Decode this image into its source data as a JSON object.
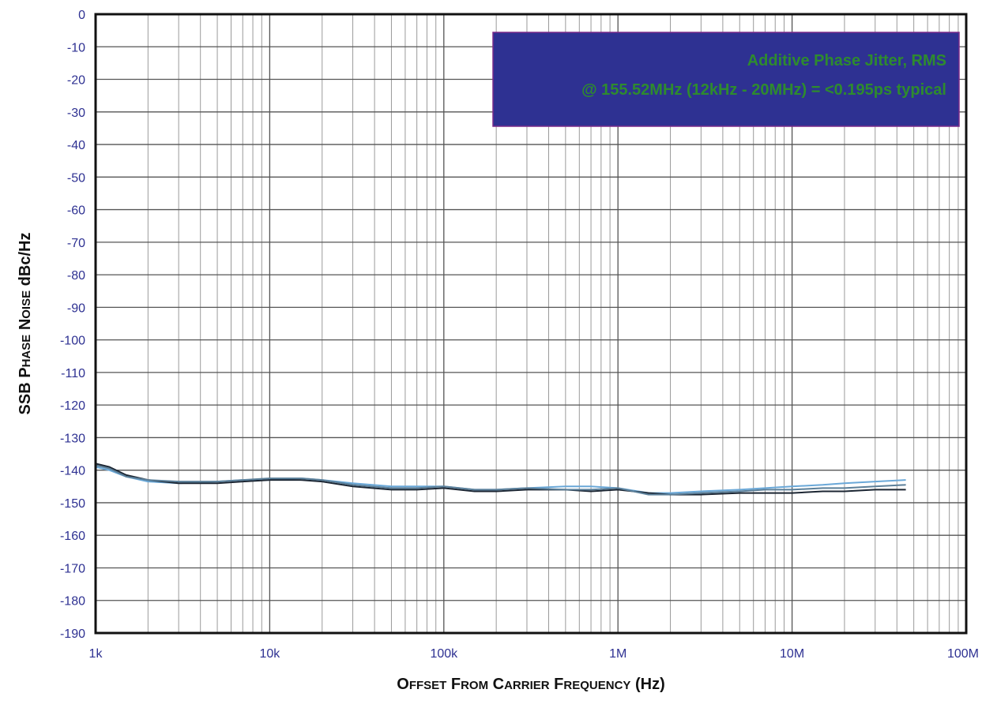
{
  "chart_data": {
    "type": "line",
    "xscale": "log",
    "xlim": [
      1000,
      100000000
    ],
    "ylim": [
      -190,
      0
    ],
    "grid": true,
    "x_ticks": [
      {
        "value": 1000,
        "label": "1k"
      },
      {
        "value": 10000,
        "label": "10k"
      },
      {
        "value": 100000,
        "label": "100k"
      },
      {
        "value": 1000000,
        "label": "1M"
      },
      {
        "value": 10000000,
        "label": "10M"
      },
      {
        "value": 100000000,
        "label": "100M"
      }
    ],
    "y_ticks": [
      0,
      -10,
      -20,
      -30,
      -40,
      -50,
      -60,
      -70,
      -80,
      -90,
      -100,
      -110,
      -120,
      -130,
      -140,
      -150,
      -160,
      -170,
      -180,
      -190
    ],
    "ylabel": {
      "parts": [
        {
          "text": "SSB P",
          "sc": false
        },
        {
          "text": "HASE",
          "sc": true
        },
        {
          "text": " N",
          "sc": false
        },
        {
          "text": "OISE",
          "sc": true
        },
        {
          "text": " dBc/Hz",
          "sc": false
        }
      ]
    },
    "xlabel": {
      "parts": [
        {
          "text": "O",
          "sc": false
        },
        {
          "text": "FFSET",
          "sc": true
        },
        {
          "text": " F",
          "sc": false
        },
        {
          "text": "ROM",
          "sc": true
        },
        {
          "text": " C",
          "sc": false
        },
        {
          "text": "ARRIER",
          "sc": true
        },
        {
          "text": " F",
          "sc": false
        },
        {
          "text": "REQUENCY",
          "sc": true
        },
        {
          "text": " (Hz)",
          "sc": false
        }
      ]
    },
    "annotation": {
      "lines": [
        "Additive Phase Jitter, RMS",
        "@ 155.52MHz (12kHz - 20MHz) = <0.195ps typical"
      ],
      "bg_color": "#2e3192",
      "text_color": "#2e8b2e",
      "position": "top-right"
    },
    "series": [
      {
        "color": "#6aa8d8",
        "x": [
          1000,
          1200,
          1500,
          2000,
          3000,
          5000,
          7000,
          10000,
          15000,
          20000,
          30000,
          50000,
          70000,
          100000,
          150000,
          200000,
          300000,
          500000,
          700000,
          1000000,
          1500000,
          2000000,
          3000000,
          5000000,
          7000000,
          10000000,
          15000000,
          20000000,
          30000000,
          45000000
        ],
        "y": [
          -139,
          -140,
          -142,
          -143.5,
          -144,
          -143.5,
          -143,
          -143,
          -142.5,
          -143,
          -144,
          -145,
          -145,
          -145,
          -146,
          -146,
          -145.5,
          -145,
          -145,
          -145.5,
          -147,
          -147,
          -146.5,
          -146,
          -145.5,
          -145,
          -144.5,
          -144,
          -143.5,
          -143
        ]
      },
      {
        "color": "#1c2633",
        "x": [
          1000,
          1200,
          1500,
          2000,
          3000,
          5000,
          7000,
          10000,
          15000,
          20000,
          30000,
          50000,
          70000,
          100000,
          150000,
          200000,
          300000,
          500000,
          700000,
          1000000,
          1500000,
          2000000,
          3000000,
          5000000,
          7000000,
          10000000,
          15000000,
          20000000,
          30000000,
          45000000
        ],
        "y": [
          -138,
          -139,
          -141.5,
          -143,
          -144,
          -144,
          -143.5,
          -143,
          -143,
          -143.5,
          -145,
          -146,
          -146,
          -145.5,
          -146.5,
          -146.5,
          -146,
          -146,
          -146.5,
          -146,
          -147,
          -147.5,
          -147.5,
          -147,
          -147,
          -147,
          -146.5,
          -146.5,
          -146,
          -146
        ]
      },
      {
        "color": "#5b7f99",
        "x": [
          1000,
          1200,
          1500,
          2000,
          3000,
          5000,
          7000,
          10000,
          15000,
          20000,
          30000,
          50000,
          70000,
          100000,
          150000,
          200000,
          300000,
          500000,
          700000,
          1000000,
          1500000,
          2000000,
          3000000,
          5000000,
          7000000,
          10000000,
          15000000,
          20000000,
          30000000,
          45000000
        ],
        "y": [
          -138.5,
          -139.5,
          -142,
          -143,
          -143.5,
          -143.5,
          -143,
          -142.5,
          -142.5,
          -143,
          -144.5,
          -145.5,
          -145.5,
          -145,
          -146,
          -146,
          -145.5,
          -146,
          -146,
          -145.5,
          -147.5,
          -147.5,
          -147,
          -146.5,
          -146,
          -146,
          -145.5,
          -145.5,
          -145,
          -144.5
        ]
      }
    ]
  }
}
